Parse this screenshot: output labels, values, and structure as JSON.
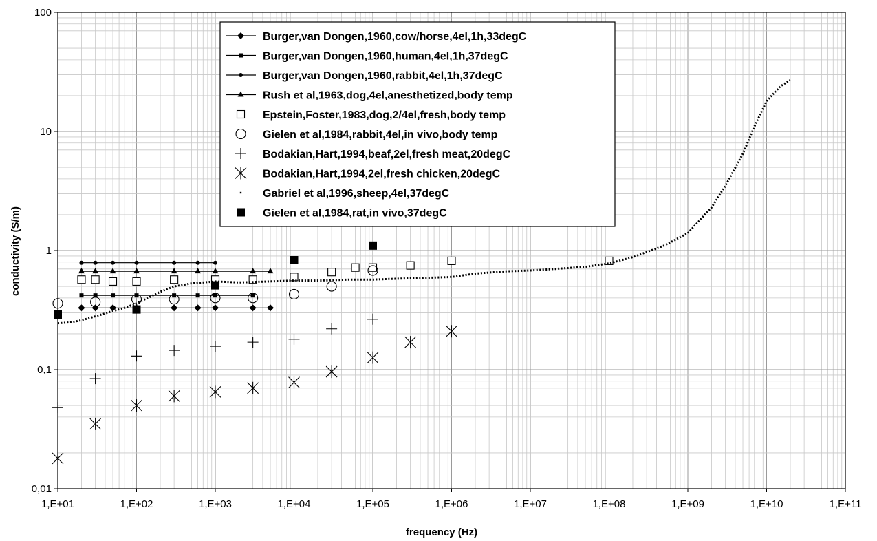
{
  "chart_data": {
    "type": "scatter",
    "xscale": "log",
    "yscale": "log",
    "xlabel": "frequency (Hz)",
    "ylabel": "conductivity (S/m)",
    "xlim": [
      10,
      100000000000
    ],
    "ylim": [
      0.01,
      100
    ],
    "x_tick_labels": [
      "1,E+01",
      "1,E+02",
      "1,E+03",
      "1,E+04",
      "1,E+05",
      "1,E+06",
      "1,E+07",
      "1,E+08",
      "1,E+09",
      "1,E+10",
      "1,E+11"
    ],
    "y_tick_labels": [
      "0,01",
      "0,1",
      "1",
      "10",
      "100"
    ],
    "grid": true,
    "legend_position": "top-center",
    "series": [
      {
        "name": "Burger,van Dongen,1960,cow/horse,4el,1h,33degC",
        "marker": "diamond",
        "line": true,
        "x": [
          20,
          30,
          50,
          100,
          300,
          600,
          1000,
          3000,
          5000
        ],
        "y": [
          0.33,
          0.33,
          0.33,
          0.33,
          0.33,
          0.33,
          0.33,
          0.33,
          0.33
        ]
      },
      {
        "name": "Burger,van Dongen,1960,human,4el,1h,37degC",
        "marker": "square-small",
        "line": true,
        "x": [
          20,
          30,
          50,
          100,
          300,
          600,
          1000,
          3000
        ],
        "y": [
          0.42,
          0.42,
          0.42,
          0.42,
          0.42,
          0.42,
          0.42,
          0.42
        ]
      },
      {
        "name": "Burger,van Dongen,1960,rabbit,4el,1h,37degC",
        "marker": "circle-small",
        "line": true,
        "x": [
          20,
          30,
          50,
          100,
          300,
          600,
          1000
        ],
        "y": [
          0.79,
          0.79,
          0.79,
          0.79,
          0.79,
          0.79,
          0.79
        ]
      },
      {
        "name": "Rush et al,1963,dog,4el,anesthetized,body temp",
        "marker": "triangle",
        "line": true,
        "x": [
          20,
          30,
          50,
          100,
          300,
          600,
          1000,
          3000,
          5000
        ],
        "y": [
          0.67,
          0.67,
          0.67,
          0.67,
          0.67,
          0.67,
          0.67,
          0.67,
          0.67
        ]
      },
      {
        "name": "Epstein,Foster,1983,dog,2/4el,fresh,body temp",
        "marker": "open-square",
        "line": false,
        "x": [
          20,
          30,
          50,
          100,
          300,
          1000,
          3000,
          10000,
          30000,
          60000,
          100000,
          300000,
          1000000,
          100000000
        ],
        "y": [
          0.57,
          0.57,
          0.55,
          0.55,
          0.57,
          0.57,
          0.57,
          0.6,
          0.66,
          0.72,
          0.72,
          0.75,
          0.82,
          0.82
        ]
      },
      {
        "name": "Gielen et al,1984,rabbit,4el,in vivo,body temp",
        "marker": "open-circle",
        "line": false,
        "x": [
          10,
          30,
          100,
          300,
          1000,
          3000,
          10000,
          30000,
          100000
        ],
        "y": [
          0.36,
          0.37,
          0.39,
          0.39,
          0.4,
          0.4,
          0.43,
          0.5,
          0.68
        ]
      },
      {
        "name": "Bodakian,Hart,1994,beaf,2el,fresh meat,20degC",
        "marker": "plus",
        "line": false,
        "x": [
          10,
          30,
          100,
          300,
          1000,
          3000,
          10000,
          30000,
          100000
        ],
        "y": [
          0.048,
          0.084,
          0.13,
          0.145,
          0.157,
          0.17,
          0.18,
          0.22,
          0.265
        ]
      },
      {
        "name": "Bodakian,Hart,1994,2el,fresh chicken,20degC",
        "marker": "asterisk",
        "line": false,
        "x": [
          10,
          30,
          100,
          300,
          1000,
          3000,
          10000,
          30000,
          100000,
          300000,
          1000000
        ],
        "y": [
          0.018,
          0.035,
          0.05,
          0.06,
          0.065,
          0.07,
          0.078,
          0.096,
          0.126,
          0.17,
          0.21
        ]
      },
      {
        "name": "Gabriel et al,1996,sheep,4el,37degC",
        "marker": "dot",
        "line": false,
        "dotted_curve": true,
        "x": [
          10,
          15,
          20,
          30,
          50,
          70,
          100,
          150,
          200,
          300,
          500,
          1000,
          2000,
          5000,
          10000,
          20000,
          50000,
          100000,
          200000,
          500000,
          1000000,
          2000000,
          5000000,
          10000000,
          20000000,
          50000000,
          100000000,
          200000000,
          500000000,
          1000000000,
          2000000000,
          3000000000,
          5000000000,
          7000000000,
          10000000000,
          15000000000,
          20000000000
        ],
        "y": [
          0.245,
          0.25,
          0.26,
          0.28,
          0.31,
          0.33,
          0.36,
          0.41,
          0.45,
          0.5,
          0.53,
          0.55,
          0.54,
          0.55,
          0.56,
          0.56,
          0.57,
          0.57,
          0.58,
          0.59,
          0.6,
          0.64,
          0.67,
          0.68,
          0.7,
          0.73,
          0.78,
          0.88,
          1.1,
          1.4,
          2.3,
          3.5,
          6.5,
          11,
          18,
          24,
          27
        ]
      },
      {
        "name": "Gielen et al,1984,rat,in vivo,37degC",
        "marker": "filled-square",
        "line": false,
        "x": [
          10,
          100,
          1000,
          10000,
          100000
        ],
        "y": [
          0.29,
          0.32,
          0.51,
          0.83,
          1.1
        ]
      }
    ]
  }
}
